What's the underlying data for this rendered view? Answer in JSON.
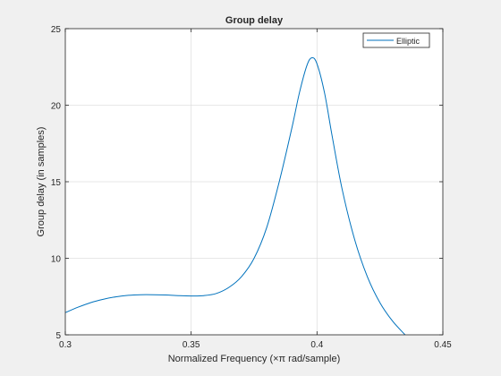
{
  "chart_data": {
    "type": "line",
    "title": "Group delay",
    "xlabel": "Normalized Frequency (×π rad/sample)",
    "ylabel": "Group delay (in samples)",
    "xlim": [
      0.3,
      0.45
    ],
    "ylim": [
      5,
      25
    ],
    "xticks": [
      "0.3",
      "0.35",
      "0.4",
      "0.45"
    ],
    "yticks": [
      "5",
      "10",
      "15",
      "20",
      "25"
    ],
    "grid": true,
    "legend": {
      "position": "top-right"
    },
    "series": [
      {
        "name": "Elliptic",
        "color": "#0072bd",
        "points": [
          [
            0.3,
            6.45
          ],
          [
            0.305,
            6.8
          ],
          [
            0.31,
            7.1
          ],
          [
            0.315,
            7.32
          ],
          [
            0.32,
            7.48
          ],
          [
            0.325,
            7.58
          ],
          [
            0.33,
            7.62
          ],
          [
            0.335,
            7.62
          ],
          [
            0.34,
            7.6
          ],
          [
            0.345,
            7.56
          ],
          [
            0.35,
            7.54
          ],
          [
            0.355,
            7.56
          ],
          [
            0.36,
            7.7
          ],
          [
            0.365,
            8.1
          ],
          [
            0.37,
            8.8
          ],
          [
            0.375,
            10.0
          ],
          [
            0.38,
            12.0
          ],
          [
            0.385,
            15.0
          ],
          [
            0.39,
            18.5
          ],
          [
            0.393,
            20.8
          ],
          [
            0.396,
            22.6
          ],
          [
            0.398,
            23.1
          ],
          [
            0.4,
            22.7
          ],
          [
            0.403,
            20.8
          ],
          [
            0.406,
            18.0
          ],
          [
            0.41,
            14.5
          ],
          [
            0.415,
            11.2
          ],
          [
            0.42,
            8.8
          ],
          [
            0.425,
            7.1
          ],
          [
            0.43,
            5.9
          ],
          [
            0.435,
            5.0
          ]
        ]
      }
    ]
  }
}
